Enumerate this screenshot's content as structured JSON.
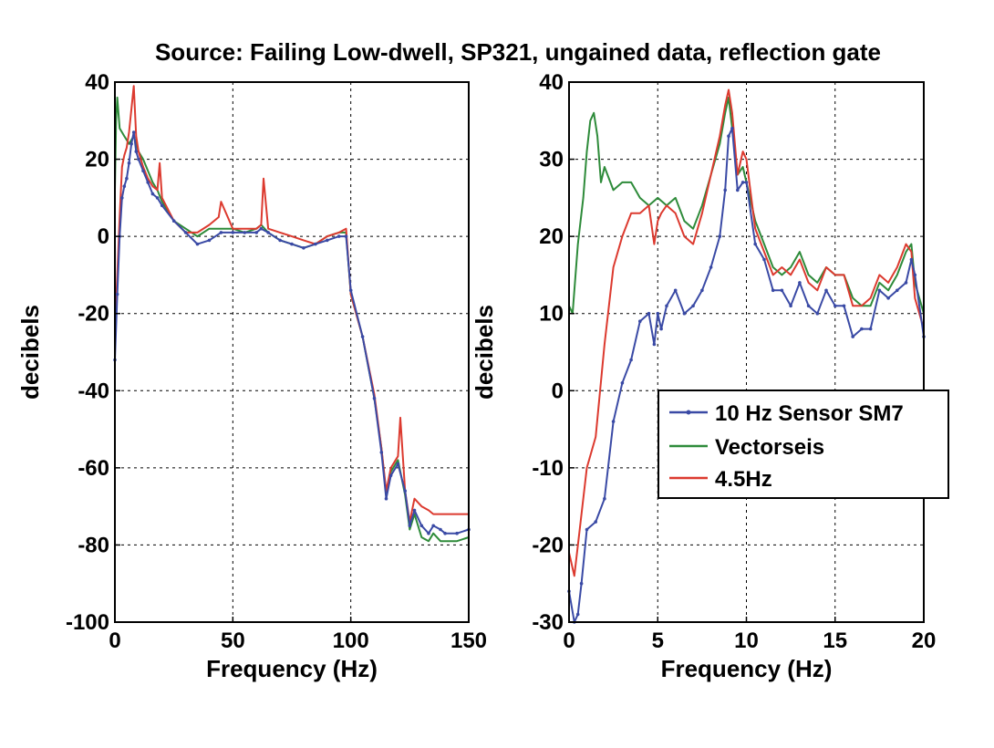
{
  "figure_title": "Source: Failing Low-dwell, SP321, ungained data, reflection gate",
  "legend": [
    {
      "label": "10 Hz Sensor SM7",
      "color": "#3a4aa5",
      "marker": "dot"
    },
    {
      "label": "Vectorseis",
      "color": "#2e8b3a",
      "marker": "none"
    },
    {
      "label": "4.5Hz",
      "color": "#dc3a2f",
      "marker": "none"
    }
  ],
  "chart_data": [
    {
      "type": "line",
      "title": "",
      "xlabel": "Frequency (Hz)",
      "ylabel": "decibels",
      "xlim": [
        0,
        150
      ],
      "ylim": [
        -100,
        40
      ],
      "xticks": [
        0,
        50,
        100,
        150
      ],
      "yticks": [
        40,
        20,
        0,
        -20,
        -40,
        -60,
        -80,
        -100
      ],
      "xtick_labels": [
        "0",
        "50",
        "100",
        "150"
      ],
      "ytick_labels": [
        "40",
        "20",
        "0",
        "-20",
        "-40",
        "-60",
        "-80",
        "-100"
      ],
      "grid": true,
      "series": [
        {
          "name": "10 Hz Sensor SM7",
          "color": "#3a4aa5",
          "x": [
            0,
            1,
            2,
            3,
            4,
            5,
            6,
            7,
            8,
            9,
            10,
            12,
            14,
            16,
            18,
            20,
            25,
            30,
            35,
            40,
            45,
            50,
            55,
            60,
            62,
            65,
            70,
            75,
            80,
            85,
            90,
            95,
            98,
            100,
            105,
            110,
            113,
            115,
            117,
            120,
            123,
            125,
            127,
            130,
            133,
            135,
            138,
            140,
            145,
            150
          ],
          "y": [
            -32,
            -15,
            0,
            10,
            13,
            15,
            19,
            24,
            27,
            22,
            20,
            17,
            14,
            11,
            10,
            8,
            4,
            1,
            -2,
            -1,
            1,
            1,
            1,
            1,
            2,
            1,
            -1,
            -2,
            -3,
            -2,
            -1,
            0,
            0,
            -14,
            -26,
            -42,
            -56,
            -68,
            -62,
            -59,
            -66,
            -75,
            -71,
            -75,
            -77,
            -75,
            -76,
            -77,
            -77,
            -76
          ]
        },
        {
          "name": "Vectorseis",
          "color": "#2e8b3a",
          "x": [
            0,
            0.5,
            1,
            2,
            3,
            4,
            5,
            6,
            7,
            8,
            9,
            10,
            12,
            14,
            16,
            18,
            20,
            25,
            30,
            35,
            40,
            45,
            50,
            55,
            60,
            62,
            65,
            70,
            75,
            80,
            85,
            90,
            95,
            98,
            100,
            105,
            110,
            113,
            115,
            117,
            120,
            123,
            125,
            127,
            130,
            133,
            135,
            138,
            140,
            145,
            150
          ],
          "y": [
            12,
            30,
            36,
            28,
            27,
            26,
            25,
            24,
            25,
            26,
            24,
            22,
            20,
            17,
            14,
            12,
            9,
            4,
            2,
            0,
            2,
            2,
            2,
            1,
            2,
            3,
            1,
            -1,
            -2,
            -3,
            -2,
            0,
            1,
            1,
            -15,
            -26,
            -42,
            -55,
            -67,
            -61,
            -58,
            -67,
            -76,
            -72,
            -78,
            -79,
            -77,
            -79,
            -79,
            -79,
            -78
          ]
        },
        {
          "name": "4.5Hz",
          "color": "#dc3a2f",
          "x": [
            0,
            1,
            2,
            3,
            4,
            5,
            6,
            7,
            8,
            9,
            10,
            12,
            14,
            16,
            18,
            19,
            20,
            25,
            30,
            35,
            40,
            44,
            45,
            50,
            55,
            60,
            62,
            63,
            65,
            70,
            75,
            80,
            85,
            90,
            95,
            98,
            100,
            105,
            110,
            113,
            115,
            117,
            120,
            121,
            123,
            125,
            127,
            130,
            133,
            135,
            138,
            140,
            145,
            150
          ],
          "y": [
            -25,
            -10,
            5,
            18,
            21,
            23,
            27,
            33,
            39,
            26,
            22,
            18,
            15,
            13,
            12,
            19,
            10,
            4,
            1,
            1,
            3,
            5,
            9,
            2,
            2,
            2,
            3,
            15,
            2,
            1,
            0,
            -1,
            -2,
            0,
            1,
            2,
            -15,
            -26,
            -41,
            -55,
            -66,
            -60,
            -57,
            -47,
            -66,
            -74,
            -68,
            -70,
            -71,
            -72,
            -72,
            -72,
            -72,
            -72
          ]
        }
      ]
    },
    {
      "type": "line",
      "title": "",
      "xlabel": "Frequency (Hz)",
      "ylabel": "decibels",
      "xlim": [
        0,
        20
      ],
      "ylim": [
        -30,
        40
      ],
      "xticks": [
        0,
        5,
        10,
        15,
        20
      ],
      "yticks": [
        40,
        30,
        20,
        10,
        0,
        -10,
        -20,
        -30
      ],
      "xtick_labels": [
        "0",
        "5",
        "10",
        "15",
        "20"
      ],
      "ytick_labels": [
        "40",
        "30",
        "20",
        "10",
        "0",
        "-10",
        "-20",
        "-30"
      ],
      "grid": true,
      "legend_position": "middle-right",
      "series": [
        {
          "name": "10 Hz Sensor SM7",
          "color": "#3a4aa5",
          "x": [
            0,
            0.3,
            0.5,
            0.7,
            1.0,
            1.5,
            2.0,
            2.5,
            3.0,
            3.5,
            4.0,
            4.5,
            4.8,
            5.0,
            5.2,
            5.5,
            6.0,
            6.5,
            7.0,
            7.5,
            8.0,
            8.5,
            8.8,
            9.0,
            9.2,
            9.5,
            9.8,
            10.0,
            10.5,
            11.0,
            11.5,
            12.0,
            12.5,
            13.0,
            13.5,
            14.0,
            14.5,
            15.0,
            15.5,
            16.0,
            16.5,
            17.0,
            17.5,
            18.0,
            18.5,
            19.0,
            19.3,
            19.5,
            20.0
          ],
          "y": [
            -26,
            -30,
            -29,
            -25,
            -18,
            -17,
            -14,
            -4,
            1,
            4,
            9,
            10,
            6,
            10,
            8,
            11,
            13,
            10,
            11,
            13,
            16,
            20,
            26,
            33,
            34,
            26,
            27,
            27,
            19,
            17,
            13,
            13,
            11,
            14,
            11,
            10,
            13,
            11,
            11,
            7,
            8,
            8,
            13,
            12,
            13,
            14,
            17,
            15,
            7
          ]
        },
        {
          "name": "Vectorseis",
          "color": "#2e8b3a",
          "x": [
            0,
            0.2,
            0.5,
            0.8,
            1.0,
            1.2,
            1.4,
            1.6,
            1.8,
            2.0,
            2.5,
            3.0,
            3.5,
            4.0,
            4.5,
            5.0,
            5.5,
            6.0,
            6.5,
            7.0,
            7.5,
            8.0,
            8.5,
            8.8,
            9.0,
            9.2,
            9.5,
            9.8,
            10.0,
            10.5,
            11.0,
            11.5,
            12.0,
            12.5,
            13.0,
            13.5,
            14.0,
            14.5,
            15.0,
            15.5,
            16.0,
            16.5,
            17.0,
            17.5,
            18.0,
            18.5,
            19.0,
            19.3,
            19.5,
            20.0
          ],
          "y": [
            11,
            10,
            19,
            25,
            31,
            35,
            36,
            33,
            27,
            29,
            26,
            27,
            27,
            25,
            24,
            25,
            24,
            25,
            22,
            21,
            24,
            28,
            32,
            36,
            38,
            34,
            28,
            29,
            27,
            22,
            19,
            16,
            15,
            16,
            18,
            15,
            14,
            16,
            15,
            15,
            12,
            11,
            11,
            14,
            13,
            15,
            18,
            19,
            14,
            10
          ]
        },
        {
          "name": "4.5Hz",
          "color": "#dc3a2f",
          "x": [
            0,
            0.3,
            0.6,
            1.0,
            1.5,
            2.0,
            2.5,
            3.0,
            3.5,
            4.0,
            4.5,
            4.8,
            5.0,
            5.2,
            5.5,
            6.0,
            6.5,
            7.0,
            7.5,
            8.0,
            8.5,
            8.8,
            9.0,
            9.2,
            9.5,
            9.8,
            10.0,
            10.5,
            11.0,
            11.5,
            12.0,
            12.5,
            13.0,
            13.5,
            14.0,
            14.5,
            15.0,
            15.5,
            16.0,
            16.5,
            17.0,
            17.5,
            18.0,
            18.5,
            19.0,
            19.3,
            19.5,
            20.0
          ],
          "y": [
            -21,
            -24,
            -18,
            -10,
            -6,
            6,
            16,
            20,
            23,
            23,
            24,
            19,
            22,
            23,
            24,
            23,
            20,
            19,
            23,
            28,
            33,
            37,
            39,
            36,
            28,
            31,
            30,
            21,
            18,
            15,
            16,
            15,
            17,
            14,
            13,
            16,
            15,
            15,
            11,
            11,
            12,
            15,
            14,
            16,
            19,
            18,
            12,
            8
          ]
        }
      ]
    }
  ]
}
